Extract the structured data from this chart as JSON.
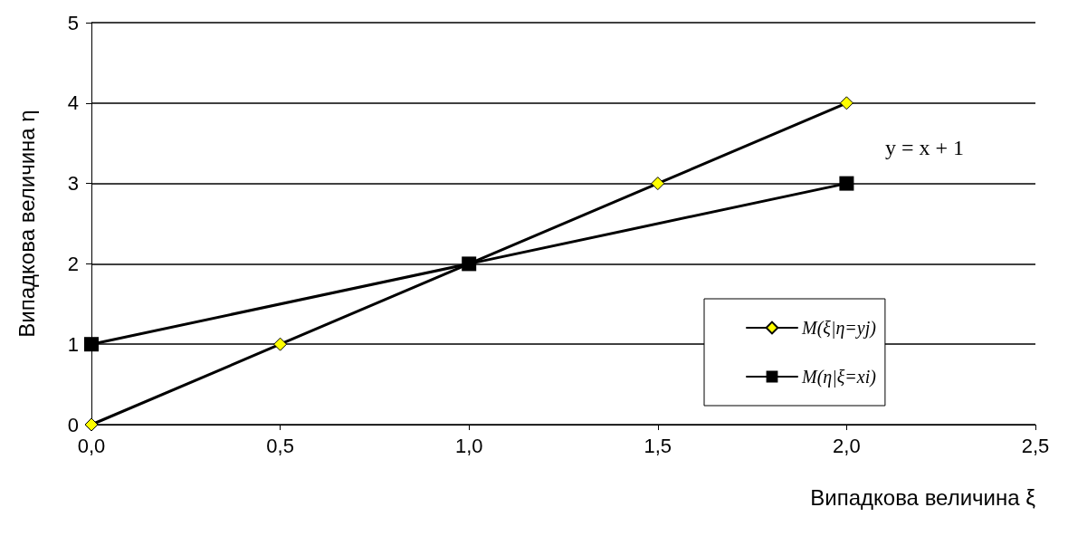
{
  "chart_data": {
    "type": "line",
    "xlabel": "Випадкова величина ξ",
    "ylabel": "Випадкова величина η",
    "xlim": [
      0,
      2.5
    ],
    "xticks": [
      {
        "value": 0,
        "label": "0,0"
      },
      {
        "value": 0.5,
        "label": "0,5"
      },
      {
        "value": 1,
        "label": "1,0"
      },
      {
        "value": 1.5,
        "label": "1,5"
      },
      {
        "value": 2,
        "label": "2,0"
      },
      {
        "value": 2.5,
        "label": "2,5"
      }
    ],
    "ylim": [
      0,
      5
    ],
    "yticks": [
      0,
      1,
      2,
      3,
      4,
      5
    ],
    "grid": "y",
    "legend": "right",
    "annotations": [
      "y = x + 1"
    ],
    "series": [
      {
        "name": "M(ξ|η=yj)",
        "color": "#ffff00",
        "marker": "diamond",
        "x": [
          0,
          0.5,
          1,
          1.5,
          2
        ],
        "values": [
          0,
          1,
          2,
          3,
          4
        ]
      },
      {
        "name": "M(η|ξ=xi)",
        "color": "#000000",
        "marker": "square",
        "x": [
          0,
          1,
          2
        ],
        "values": [
          1,
          2,
          3
        ]
      }
    ]
  }
}
